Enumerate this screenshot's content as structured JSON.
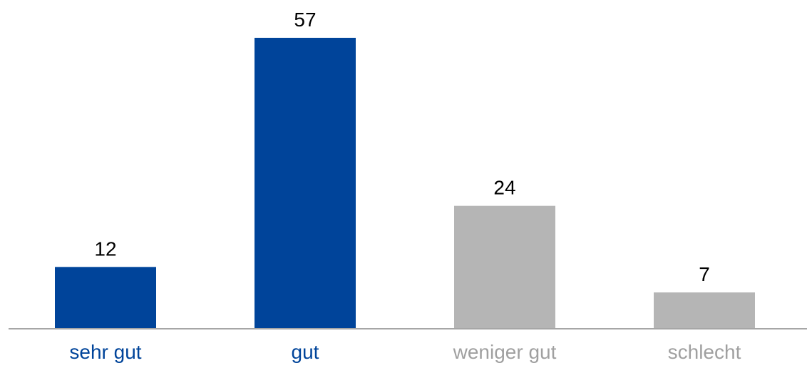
{
  "chart_data": {
    "type": "bar",
    "categories": [
      "sehr gut",
      "gut",
      "weniger gut",
      "schlecht"
    ],
    "values": [
      12,
      57,
      24,
      7
    ],
    "colors": [
      "#00449a",
      "#00449a",
      "#b5b5b5",
      "#b5b5b5"
    ]
  }
}
